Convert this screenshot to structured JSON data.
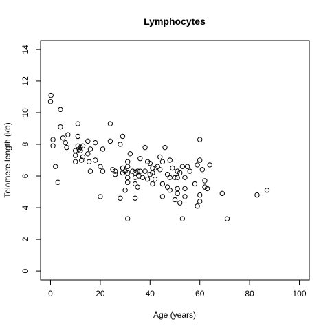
{
  "chart_data": {
    "type": "scatter",
    "title": "Lymphocytes",
    "xlabel": "Age (years)",
    "ylabel": "Telomere length (kb)",
    "xlim": [
      -4,
      104
    ],
    "ylim": [
      -0.56,
      14.56
    ],
    "xticks": [
      "0",
      "20",
      "40",
      "60",
      "80",
      "100"
    ],
    "yticks": [
      "0",
      "2",
      "4",
      "6",
      "8",
      "10",
      "12",
      "14"
    ],
    "grid": false,
    "points": [
      [
        0.2,
        11.1
      ],
      [
        0.0,
        10.7
      ],
      [
        1.0,
        8.3
      ],
      [
        1.0,
        7.9
      ],
      [
        2.0,
        6.6
      ],
      [
        3.0,
        5.6
      ],
      [
        4.0,
        10.2
      ],
      [
        4.0,
        9.1
      ],
      [
        5.0,
        8.4
      ],
      [
        6.0,
        8.1
      ],
      [
        6.5,
        7.8
      ],
      [
        7.0,
        8.6
      ],
      [
        10.0,
        7.6
      ],
      [
        10.0,
        7.3
      ],
      [
        10.0,
        6.9
      ],
      [
        11.0,
        9.3
      ],
      [
        11.0,
        8.5
      ],
      [
        11.0,
        7.9
      ],
      [
        11.5,
        7.7
      ],
      [
        12.0,
        7.8
      ],
      [
        12.0,
        7.6
      ],
      [
        12.5,
        7.0
      ],
      [
        13.0,
        7.9
      ],
      [
        13.0,
        7.2
      ],
      [
        15.0,
        8.2
      ],
      [
        15.0,
        7.4
      ],
      [
        15.5,
        6.9
      ],
      [
        16.0,
        7.7
      ],
      [
        16.0,
        6.3
      ],
      [
        18.0,
        8.1
      ],
      [
        18.0,
        7.0
      ],
      [
        20.0,
        6.6
      ],
      [
        20.0,
        4.7
      ],
      [
        21.0,
        7.7
      ],
      [
        21.0,
        6.3
      ],
      [
        24.0,
        9.3
      ],
      [
        24.0,
        8.2
      ],
      [
        25.0,
        6.4
      ],
      [
        26.0,
        6.3
      ],
      [
        26.0,
        6.1
      ],
      [
        28.0,
        8.0
      ],
      [
        28.0,
        4.6
      ],
      [
        29.0,
        8.5
      ],
      [
        29.0,
        6.5
      ],
      [
        29.0,
        6.2
      ],
      [
        30.0,
        6.3
      ],
      [
        30.0,
        5.1
      ],
      [
        31.0,
        6.9
      ],
      [
        31.0,
        6.6
      ],
      [
        31.0,
        6.2
      ],
      [
        31.0,
        5.9
      ],
      [
        31.0,
        5.6
      ],
      [
        31.0,
        3.3
      ],
      [
        32.0,
        7.4
      ],
      [
        33.0,
        6.3
      ],
      [
        34.0,
        6.2
      ],
      [
        34.0,
        5.9
      ],
      [
        34.0,
        5.5
      ],
      [
        34.0,
        4.6
      ],
      [
        35.0,
        6.3
      ],
      [
        35.0,
        5.3
      ],
      [
        35.5,
        6.0
      ],
      [
        36.0,
        7.1
      ],
      [
        36.0,
        6.3
      ],
      [
        37.0,
        5.9
      ],
      [
        38.0,
        7.8
      ],
      [
        38.0,
        6.3
      ],
      [
        39.0,
        6.9
      ],
      [
        39.0,
        5.8
      ],
      [
        40.0,
        6.8
      ],
      [
        40.0,
        6.1
      ],
      [
        41.0,
        6.5
      ],
      [
        41.0,
        6.2
      ],
      [
        41.0,
        5.5
      ],
      [
        42.0,
        6.5
      ],
      [
        42.0,
        5.8
      ],
      [
        43.0,
        6.6
      ],
      [
        44.0,
        7.2
      ],
      [
        44.0,
        6.4
      ],
      [
        45.0,
        6.9
      ],
      [
        45.0,
        5.5
      ],
      [
        45.0,
        4.7
      ],
      [
        46.0,
        7.8
      ],
      [
        47.0,
        6.1
      ],
      [
        47.0,
        5.3
      ],
      [
        48.0,
        7.0
      ],
      [
        48.0,
        5.9
      ],
      [
        48.0,
        5.1
      ],
      [
        49.0,
        6.5
      ],
      [
        50.0,
        5.9
      ],
      [
        50.0,
        4.5
      ],
      [
        51.0,
        6.3
      ],
      [
        51.0,
        5.9
      ],
      [
        51.0,
        5.2
      ],
      [
        51.0,
        4.9
      ],
      [
        52.0,
        6.2
      ],
      [
        52.0,
        4.3
      ],
      [
        53.0,
        6.6
      ],
      [
        53.0,
        3.3
      ],
      [
        54.0,
        5.9
      ],
      [
        54.0,
        5.2
      ],
      [
        54.0,
        4.7
      ],
      [
        55.0,
        6.6
      ],
      [
        56.0,
        6.3
      ],
      [
        58.0,
        5.5
      ],
      [
        59.0,
        6.7
      ],
      [
        59.0,
        4.1
      ],
      [
        60.0,
        8.3
      ],
      [
        60.0,
        7.0
      ],
      [
        60.0,
        4.8
      ],
      [
        60.0,
        4.4
      ],
      [
        61.0,
        6.4
      ],
      [
        62.0,
        5.7
      ],
      [
        62.0,
        5.3
      ],
      [
        63.0,
        5.2
      ],
      [
        64.0,
        6.7
      ],
      [
        69.0,
        4.9
      ],
      [
        71.0,
        3.3
      ],
      [
        83.0,
        4.8
      ],
      [
        87.0,
        5.1
      ]
    ]
  }
}
